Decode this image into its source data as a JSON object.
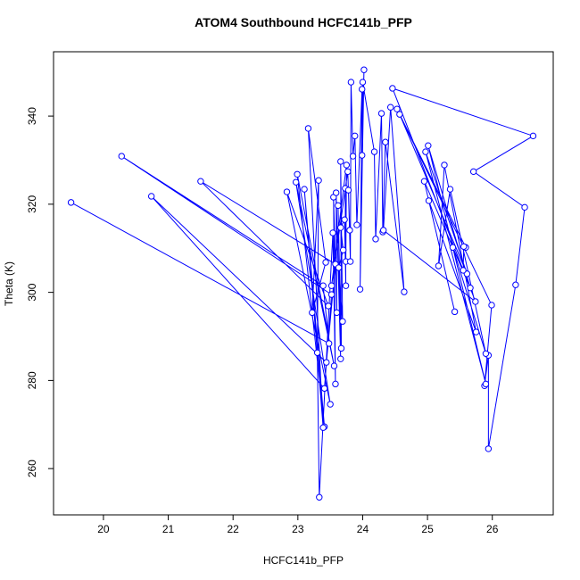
{
  "chart_data": {
    "type": "line",
    "title": "ATOM4 Southbound HCFC141b_PFP",
    "x_label": "HCFC141b_PFP",
    "y_label": "Theta (K)",
    "x": [
      19.5,
      23.48,
      23.39,
      20.28,
      23.52,
      23.41,
      20.74,
      23.44,
      23.58,
      21.5,
      23.47,
      22.83,
      23.5,
      22.97,
      23.56,
      22.99,
      23.41,
      23.1,
      23.39,
      23.16,
      23.43,
      23.22,
      23.32,
      23.3,
      23.33,
      23.54,
      23.58,
      23.55,
      23.6,
      23.59,
      23.66,
      23.62,
      23.67,
      23.66,
      23.69,
      23.63,
      23.7,
      23.66,
      23.72,
      23.74,
      23.73,
      23.74,
      23.75,
      23.52,
      23.77,
      23.8,
      23.78,
      23.81,
      23.82,
      23.85,
      23.88,
      23.91,
      23.99,
      23.96,
      24.02,
      23.99,
      24.0,
      24.18,
      24.2,
      24.29,
      24.31,
      24.35,
      24.64,
      24.43,
      24.32,
      25.74,
      24.46,
      26.63,
      25.71,
      26.5,
      26.36,
      25.94,
      25.94,
      25.88,
      25.99,
      24.53,
      25.59,
      24.57,
      25.61,
      24.97,
      25.9,
      25.01,
      25.66,
      24.95,
      25.42,
      25.02,
      25.75,
      25.26,
      25.17,
      25.35,
      25.9,
      25.39,
      25.55,
      25.56
    ],
    "series": [
      {
        "color": "#0000ff",
        "values": [
          320.4,
          288.4,
          301.5,
          330.9,
          299.5,
          278.2,
          321.8,
          284.1,
          306.4,
          325.2,
          296.9,
          322.8,
          274.6,
          325,
          283.3,
          326.8,
          269.5,
          323.4,
          269.3,
          337.2,
          306.8,
          295.4,
          325.4,
          286.3,
          253.5,
          313.5,
          279.2,
          321.6,
          295.4,
          322.6,
          284.9,
          319.7,
          287.3,
          329.7,
          293.4,
          305.6,
          309.6,
          314.7,
          316.5,
          301.5,
          323.6,
          307,
          328.9,
          301.5,
          327.4,
          314.1,
          323.2,
          307,
          347.7,
          330.9,
          335.5,
          315.3,
          346.1,
          300.7,
          350.5,
          331.1,
          347.7,
          331.9,
          312.1,
          340.6,
          313.7,
          334.1,
          300.1,
          342,
          314.1,
          297.9,
          346.3,
          335.5,
          327.4,
          319.3,
          301.7,
          264.5,
          285.7,
          278.8,
          297.1,
          341.6,
          310.2,
          340.4,
          304.2,
          331.9,
          279.2,
          333.3,
          301,
          325.2,
          295.6,
          320.8,
          291,
          328.9,
          306,
          323.4,
          286.1,
          310.2,
          305,
          310.4
        ]
      }
    ],
    "xlim": [
      19.23,
      26.94
    ],
    "ylim": [
      249.5,
      354.6
    ],
    "xticks": [
      20,
      21,
      22,
      23,
      24,
      25,
      26
    ],
    "yticks": [
      260,
      280,
      300,
      320,
      340
    ]
  }
}
